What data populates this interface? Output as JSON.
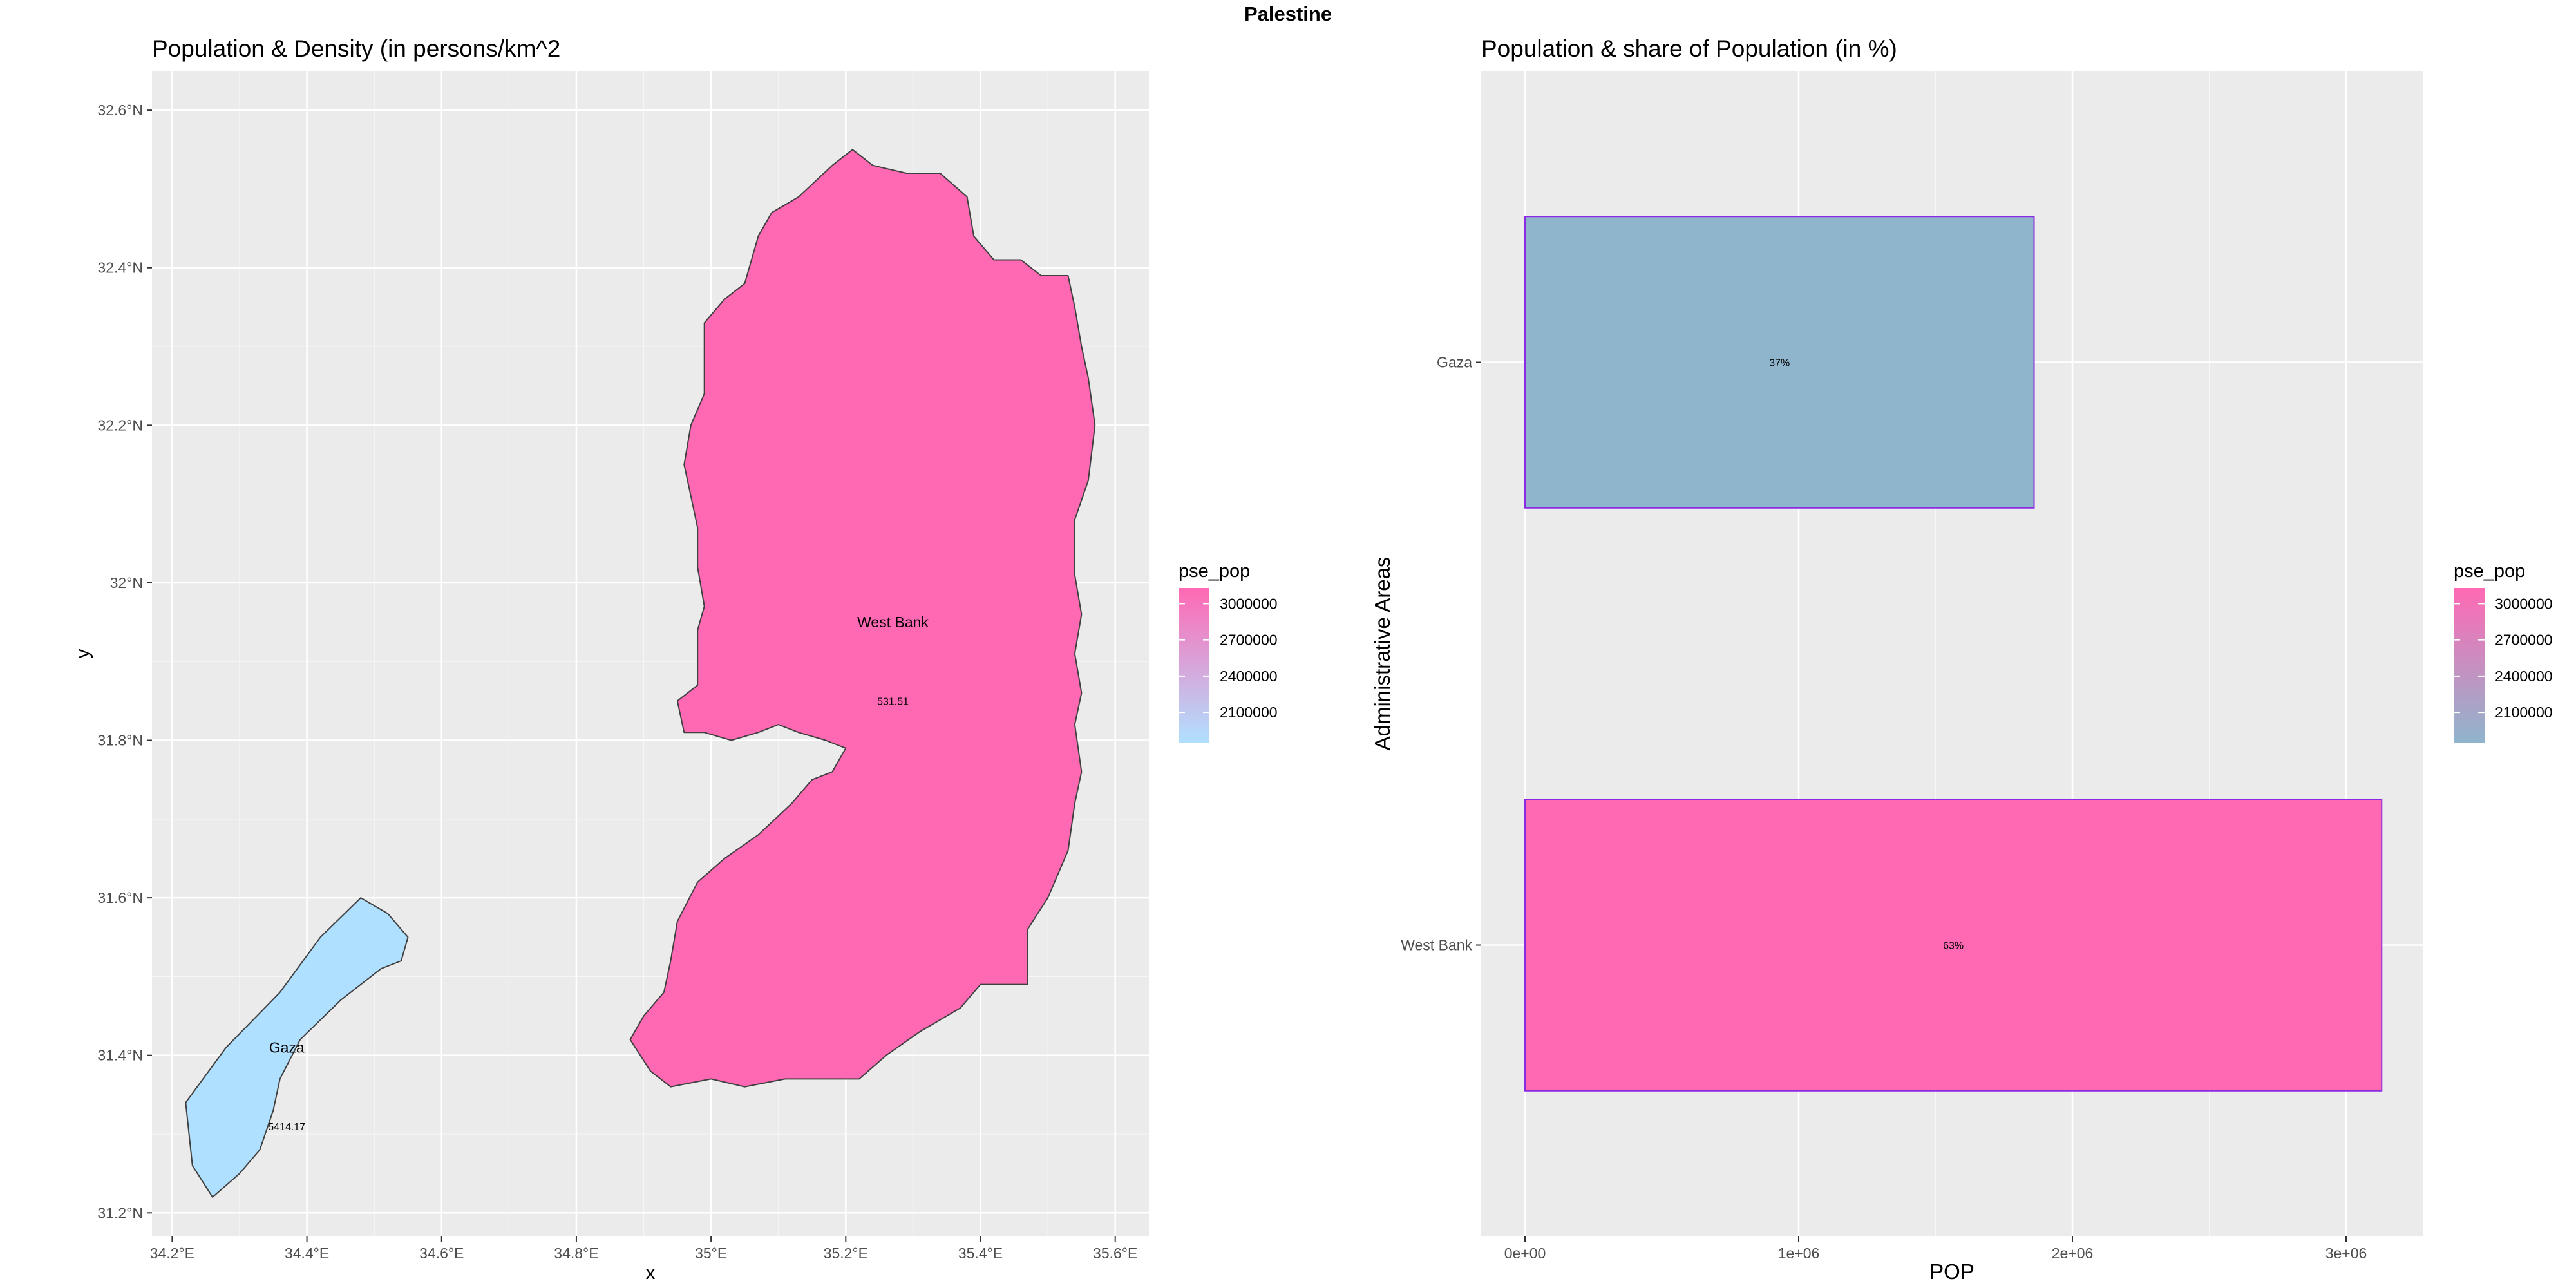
{
  "figure_title": "Palestine",
  "colors": {
    "panel_bg": "#EBEBEB",
    "grid": "#FFFFFF",
    "west_bank": "#FF69B4",
    "gaza_map": "#B0E0FF",
    "gaza_bar": "#8FB5CC",
    "bar_outline": "#8A2BE2",
    "polygon_outline": "#404040",
    "axis_text": "#4D4D4D"
  },
  "chart_data": [
    {
      "type": "map",
      "title": "Population & Density (in persons/km^2",
      "xlabel": "x",
      "ylabel": "y",
      "xlim": [
        34.17,
        35.65
      ],
      "ylim": [
        31.17,
        32.65
      ],
      "x_ticks": [
        34.2,
        34.4,
        34.6,
        34.8,
        35.0,
        35.2,
        35.4,
        35.6
      ],
      "x_tick_labels": [
        "34.2°E",
        "34.4°E",
        "34.6°E",
        "34.8°E",
        "35°E",
        "35.2°E",
        "35.4°E",
        "35.6°E"
      ],
      "y_ticks": [
        31.2,
        31.4,
        31.6,
        31.8,
        32.0,
        32.2,
        32.4,
        32.6
      ],
      "y_tick_labels": [
        "31.2°N",
        "31.4°N",
        "31.6°N",
        "31.8°N",
        "32°N",
        "32.2°N",
        "32.4°N",
        "32.6°N"
      ],
      "grid": true,
      "legend": {
        "title": "pse_pop",
        "position": "right",
        "breaks": [
          3000000,
          2700000,
          2400000,
          2100000
        ],
        "labels": [
          "3000000",
          "2700000",
          "2400000",
          "2100000"
        ],
        "colors": [
          "#FF69B4",
          "#B0E0FF"
        ]
      },
      "regions": [
        {
          "name": "West Bank",
          "density_label": "531.51",
          "pse_pop": 3100000,
          "label_at": [
            35.27,
            31.95
          ],
          "density_at": [
            35.27,
            31.85
          ],
          "outline": [
            [
              35.18,
              32.53
            ],
            [
              35.21,
              32.55
            ],
            [
              35.24,
              32.53
            ],
            [
              35.29,
              32.52
            ],
            [
              35.34,
              32.52
            ],
            [
              35.38,
              32.49
            ],
            [
              35.39,
              32.44
            ],
            [
              35.42,
              32.41
            ],
            [
              35.46,
              32.41
            ],
            [
              35.49,
              32.39
            ],
            [
              35.53,
              32.39
            ],
            [
              35.54,
              32.35
            ],
            [
              35.55,
              32.3
            ],
            [
              35.56,
              32.26
            ],
            [
              35.57,
              32.2
            ],
            [
              35.56,
              32.13
            ],
            [
              35.54,
              32.08
            ],
            [
              35.54,
              32.01
            ],
            [
              35.55,
              31.96
            ],
            [
              35.54,
              31.91
            ],
            [
              35.55,
              31.86
            ],
            [
              35.54,
              31.82
            ],
            [
              35.55,
              31.76
            ],
            [
              35.54,
              31.72
            ],
            [
              35.53,
              31.66
            ],
            [
              35.5,
              31.6
            ],
            [
              35.47,
              31.56
            ],
            [
              35.47,
              31.49
            ],
            [
              35.4,
              31.49
            ],
            [
              35.37,
              31.46
            ],
            [
              35.31,
              31.43
            ],
            [
              35.26,
              31.4
            ],
            [
              35.22,
              31.37
            ],
            [
              35.16,
              31.37
            ],
            [
              35.11,
              31.37
            ],
            [
              35.05,
              31.36
            ],
            [
              35.0,
              31.37
            ],
            [
              34.94,
              31.36
            ],
            [
              34.91,
              31.38
            ],
            [
              34.88,
              31.42
            ],
            [
              34.9,
              31.45
            ],
            [
              34.93,
              31.48
            ],
            [
              34.94,
              31.52
            ],
            [
              34.95,
              31.57
            ],
            [
              34.98,
              31.62
            ],
            [
              35.02,
              31.65
            ],
            [
              35.07,
              31.68
            ],
            [
              35.12,
              31.72
            ],
            [
              35.15,
              31.75
            ],
            [
              35.18,
              31.76
            ],
            [
              35.2,
              31.79
            ],
            [
              35.17,
              31.8
            ],
            [
              35.13,
              31.81
            ],
            [
              35.1,
              31.82
            ],
            [
              35.07,
              31.81
            ],
            [
              35.03,
              31.8
            ],
            [
              34.99,
              31.81
            ],
            [
              34.96,
              31.81
            ],
            [
              34.95,
              31.85
            ],
            [
              34.98,
              31.87
            ],
            [
              34.98,
              31.9
            ],
            [
              34.98,
              31.94
            ],
            [
              34.99,
              31.97
            ],
            [
              34.98,
              32.02
            ],
            [
              34.98,
              32.07
            ],
            [
              34.97,
              32.11
            ],
            [
              34.96,
              32.15
            ],
            [
              34.97,
              32.2
            ],
            [
              34.99,
              32.24
            ],
            [
              34.99,
              32.28
            ],
            [
              34.99,
              32.33
            ],
            [
              35.02,
              32.36
            ],
            [
              35.05,
              32.38
            ],
            [
              35.06,
              32.41
            ],
            [
              35.07,
              32.44
            ],
            [
              35.09,
              32.47
            ],
            [
              35.13,
              32.49
            ]
          ]
        },
        {
          "name": "Gaza",
          "density_label": "5414.17",
          "pse_pop": 1850000,
          "label_at": [
            34.37,
            31.41
          ],
          "density_at": [
            34.37,
            31.31
          ],
          "outline": [
            [
              34.22,
              31.34
            ],
            [
              34.28,
              31.41
            ],
            [
              34.36,
              31.48
            ],
            [
              34.42,
              31.55
            ],
            [
              34.48,
              31.6
            ],
            [
              34.52,
              31.58
            ],
            [
              34.55,
              31.55
            ],
            [
              34.54,
              31.52
            ],
            [
              34.51,
              31.51
            ],
            [
              34.45,
              31.47
            ],
            [
              34.39,
              31.42
            ],
            [
              34.36,
              31.37
            ],
            [
              34.35,
              31.33
            ],
            [
              34.33,
              31.28
            ],
            [
              34.3,
              31.25
            ],
            [
              34.26,
              31.22
            ],
            [
              34.23,
              31.26
            ]
          ]
        }
      ]
    },
    {
      "type": "bar",
      "orientation": "horizontal",
      "title": "Population & share of Population (in %)",
      "xlabel": "POP",
      "ylabel": "Administrative Areas",
      "categories": [
        "West Bank",
        "Gaza"
      ],
      "values": [
        3130000,
        1860000
      ],
      "bar_labels": [
        "63%",
        "37%"
      ],
      "xlim": [
        -160000,
        3280000
      ],
      "x_ticks": [
        0,
        1000000,
        2000000,
        3000000
      ],
      "x_tick_labels": [
        "0e+00",
        "1e+06",
        "2e+06",
        "3e+06"
      ],
      "grid": true,
      "legend": {
        "title": "pse_pop",
        "position": "right",
        "breaks": [
          3000000,
          2700000,
          2400000,
          2100000
        ],
        "labels": [
          "3000000",
          "2700000",
          "2400000",
          "2100000"
        ],
        "colors": [
          "#FF69B4",
          "#8FB5CC"
        ]
      }
    }
  ]
}
